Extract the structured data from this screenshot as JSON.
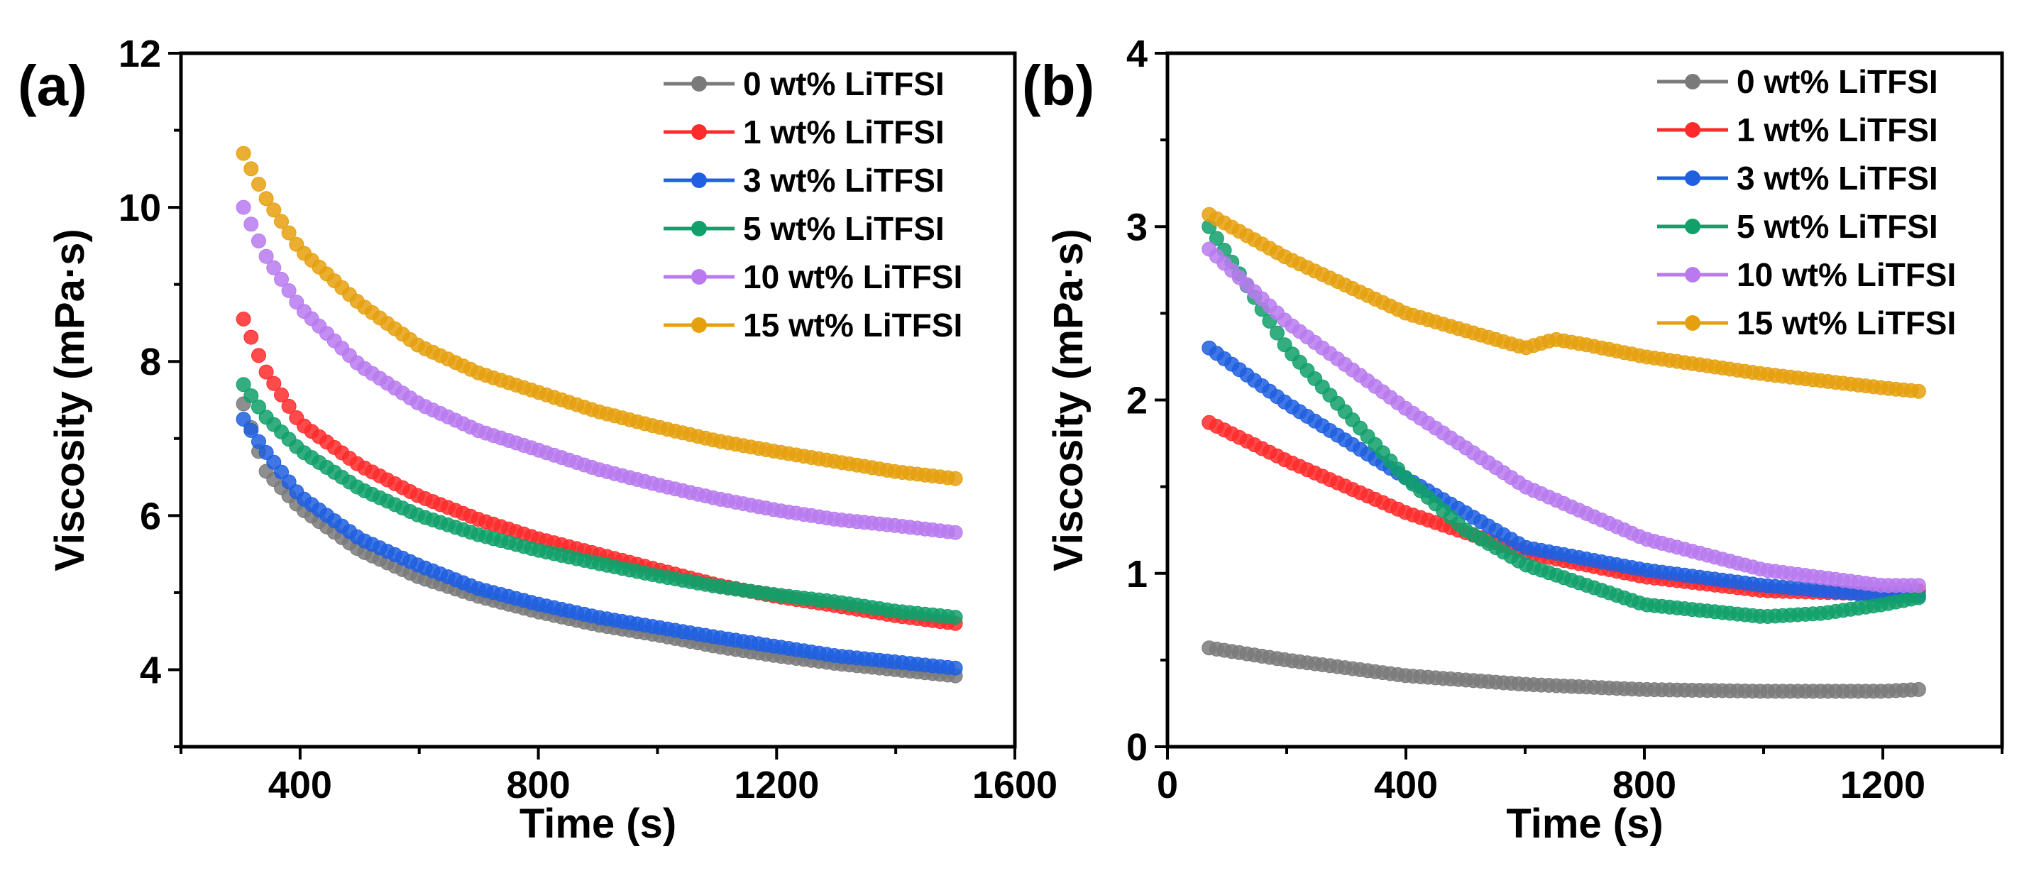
{
  "chart_data": [
    {
      "panel": "(a)",
      "type": "scatter",
      "title": "",
      "xlabel": "Time (s)",
      "ylabel": "Viscosity (mPa·s)",
      "xlim": [
        200,
        1600
      ],
      "ylim": [
        3,
        12
      ],
      "xticks": [
        400,
        800,
        1200,
        1600
      ],
      "xtick_labels": [
        "400",
        "800",
        "1200",
        "1600"
      ],
      "yticks": [
        4,
        6,
        8,
        10,
        12
      ],
      "ytick_labels": [
        "4",
        "6",
        "8",
        "10",
        "12"
      ],
      "grid": false,
      "legend_position": "top-right",
      "series": [
        {
          "name": "0 wt% LiTFSI",
          "color": "#7a7a7a",
          "x": [
            305,
            340,
            400,
            500,
            600,
            700,
            800,
            900,
            1000,
            1100,
            1200,
            1300,
            1400,
            1500
          ],
          "y": [
            7.45,
            6.6,
            6.1,
            5.55,
            5.2,
            4.95,
            4.75,
            4.58,
            4.45,
            4.3,
            4.18,
            4.08,
            4.0,
            3.92
          ]
        },
        {
          "name": "1 wt% LiTFSI",
          "color": "#ff2b2b",
          "x": [
            305,
            340,
            400,
            500,
            600,
            700,
            800,
            900,
            1000,
            1100,
            1200,
            1300,
            1400,
            1500
          ],
          "y": [
            8.55,
            7.9,
            7.2,
            6.65,
            6.25,
            5.95,
            5.7,
            5.5,
            5.3,
            5.1,
            4.95,
            4.83,
            4.7,
            4.6
          ]
        },
        {
          "name": "3 wt% LiTFSI",
          "color": "#1f5fe0",
          "x": [
            305,
            340,
            400,
            500,
            600,
            700,
            800,
            900,
            1000,
            1100,
            1200,
            1300,
            1400,
            1500
          ],
          "y": [
            7.25,
            6.85,
            6.25,
            5.7,
            5.35,
            5.05,
            4.85,
            4.68,
            4.55,
            4.42,
            4.3,
            4.18,
            4.1,
            4.02
          ]
        },
        {
          "name": "5 wt% LiTFSI",
          "color": "#11a06a",
          "x": [
            305,
            340,
            400,
            500,
            600,
            700,
            800,
            900,
            1000,
            1100,
            1200,
            1300,
            1400,
            1500
          ],
          "y": [
            7.7,
            7.3,
            6.85,
            6.35,
            6.0,
            5.75,
            5.55,
            5.38,
            5.22,
            5.08,
            4.97,
            4.88,
            4.76,
            4.68
          ]
        },
        {
          "name": "10 wt% LiTFSI",
          "color": "#b87aee",
          "x": [
            305,
            340,
            400,
            500,
            600,
            700,
            800,
            900,
            1000,
            1100,
            1200,
            1300,
            1400,
            1500
          ],
          "y": [
            10.0,
            9.4,
            8.7,
            7.95,
            7.45,
            7.1,
            6.85,
            6.6,
            6.4,
            6.22,
            6.07,
            5.95,
            5.87,
            5.78
          ]
        },
        {
          "name": "15 wt% LiTFSI",
          "color": "#e5a00e",
          "x": [
            305,
            340,
            400,
            500,
            600,
            700,
            800,
            900,
            1000,
            1100,
            1200,
            1300,
            1400,
            1500
          ],
          "y": [
            10.7,
            10.15,
            9.45,
            8.75,
            8.2,
            7.85,
            7.6,
            7.35,
            7.15,
            6.97,
            6.83,
            6.7,
            6.57,
            6.48
          ]
        }
      ]
    },
    {
      "panel": "(b)",
      "type": "scatter",
      "title": "",
      "xlabel": "Time (s)",
      "ylabel": "Viscosity (mPa·s)",
      "xlim": [
        0,
        1400
      ],
      "ylim": [
        0,
        4
      ],
      "xticks": [
        0,
        400,
        800,
        1200
      ],
      "xtick_labels": [
        "0",
        "400",
        "800",
        "1200"
      ],
      "yticks": [
        0,
        1,
        2,
        3,
        4
      ],
      "ytick_labels": [
        "0",
        "1",
        "2",
        "3",
        "4"
      ],
      "grid": false,
      "legend_position": "top-right",
      "series": [
        {
          "name": "0 wt% LiTFSI",
          "color": "#7a7a7a",
          "x": [
            70,
            200,
            400,
            600,
            800,
            1000,
            1200,
            1260
          ],
          "y": [
            0.57,
            0.5,
            0.41,
            0.36,
            0.33,
            0.32,
            0.32,
            0.33
          ]
        },
        {
          "name": "1 wt% LiTFSI",
          "color": "#ff2b2b",
          "x": [
            70,
            200,
            400,
            600,
            800,
            1000,
            1200,
            1260
          ],
          "y": [
            1.87,
            1.65,
            1.35,
            1.12,
            0.98,
            0.9,
            0.88,
            0.9
          ]
        },
        {
          "name": "3 wt% LiTFSI",
          "color": "#1f5fe0",
          "x": [
            70,
            200,
            400,
            600,
            800,
            1000,
            1200,
            1260
          ],
          "y": [
            2.3,
            1.98,
            1.55,
            1.15,
            1.02,
            0.93,
            0.87,
            0.87
          ]
        },
        {
          "name": "5 wt% LiTFSI",
          "color": "#11a06a",
          "x": [
            70,
            200,
            400,
            500,
            600,
            800,
            1000,
            1100,
            1200,
            1260
          ],
          "y": [
            3.0,
            2.3,
            1.55,
            1.25,
            1.05,
            0.82,
            0.75,
            0.77,
            0.82,
            0.86
          ]
        },
        {
          "name": "10 wt% LiTFSI",
          "color": "#b87aee",
          "x": [
            70,
            200,
            400,
            600,
            800,
            1000,
            1200,
            1260
          ],
          "y": [
            2.87,
            2.45,
            1.95,
            1.5,
            1.2,
            1.02,
            0.93,
            0.93
          ]
        },
        {
          "name": "15 wt% LiTFSI",
          "color": "#e5a00e",
          "x": [
            70,
            200,
            400,
            600,
            650,
            700,
            800,
            1000,
            1200,
            1260
          ],
          "y": [
            3.07,
            2.82,
            2.5,
            2.3,
            2.35,
            2.32,
            2.25,
            2.15,
            2.07,
            2.05
          ]
        }
      ]
    }
  ]
}
